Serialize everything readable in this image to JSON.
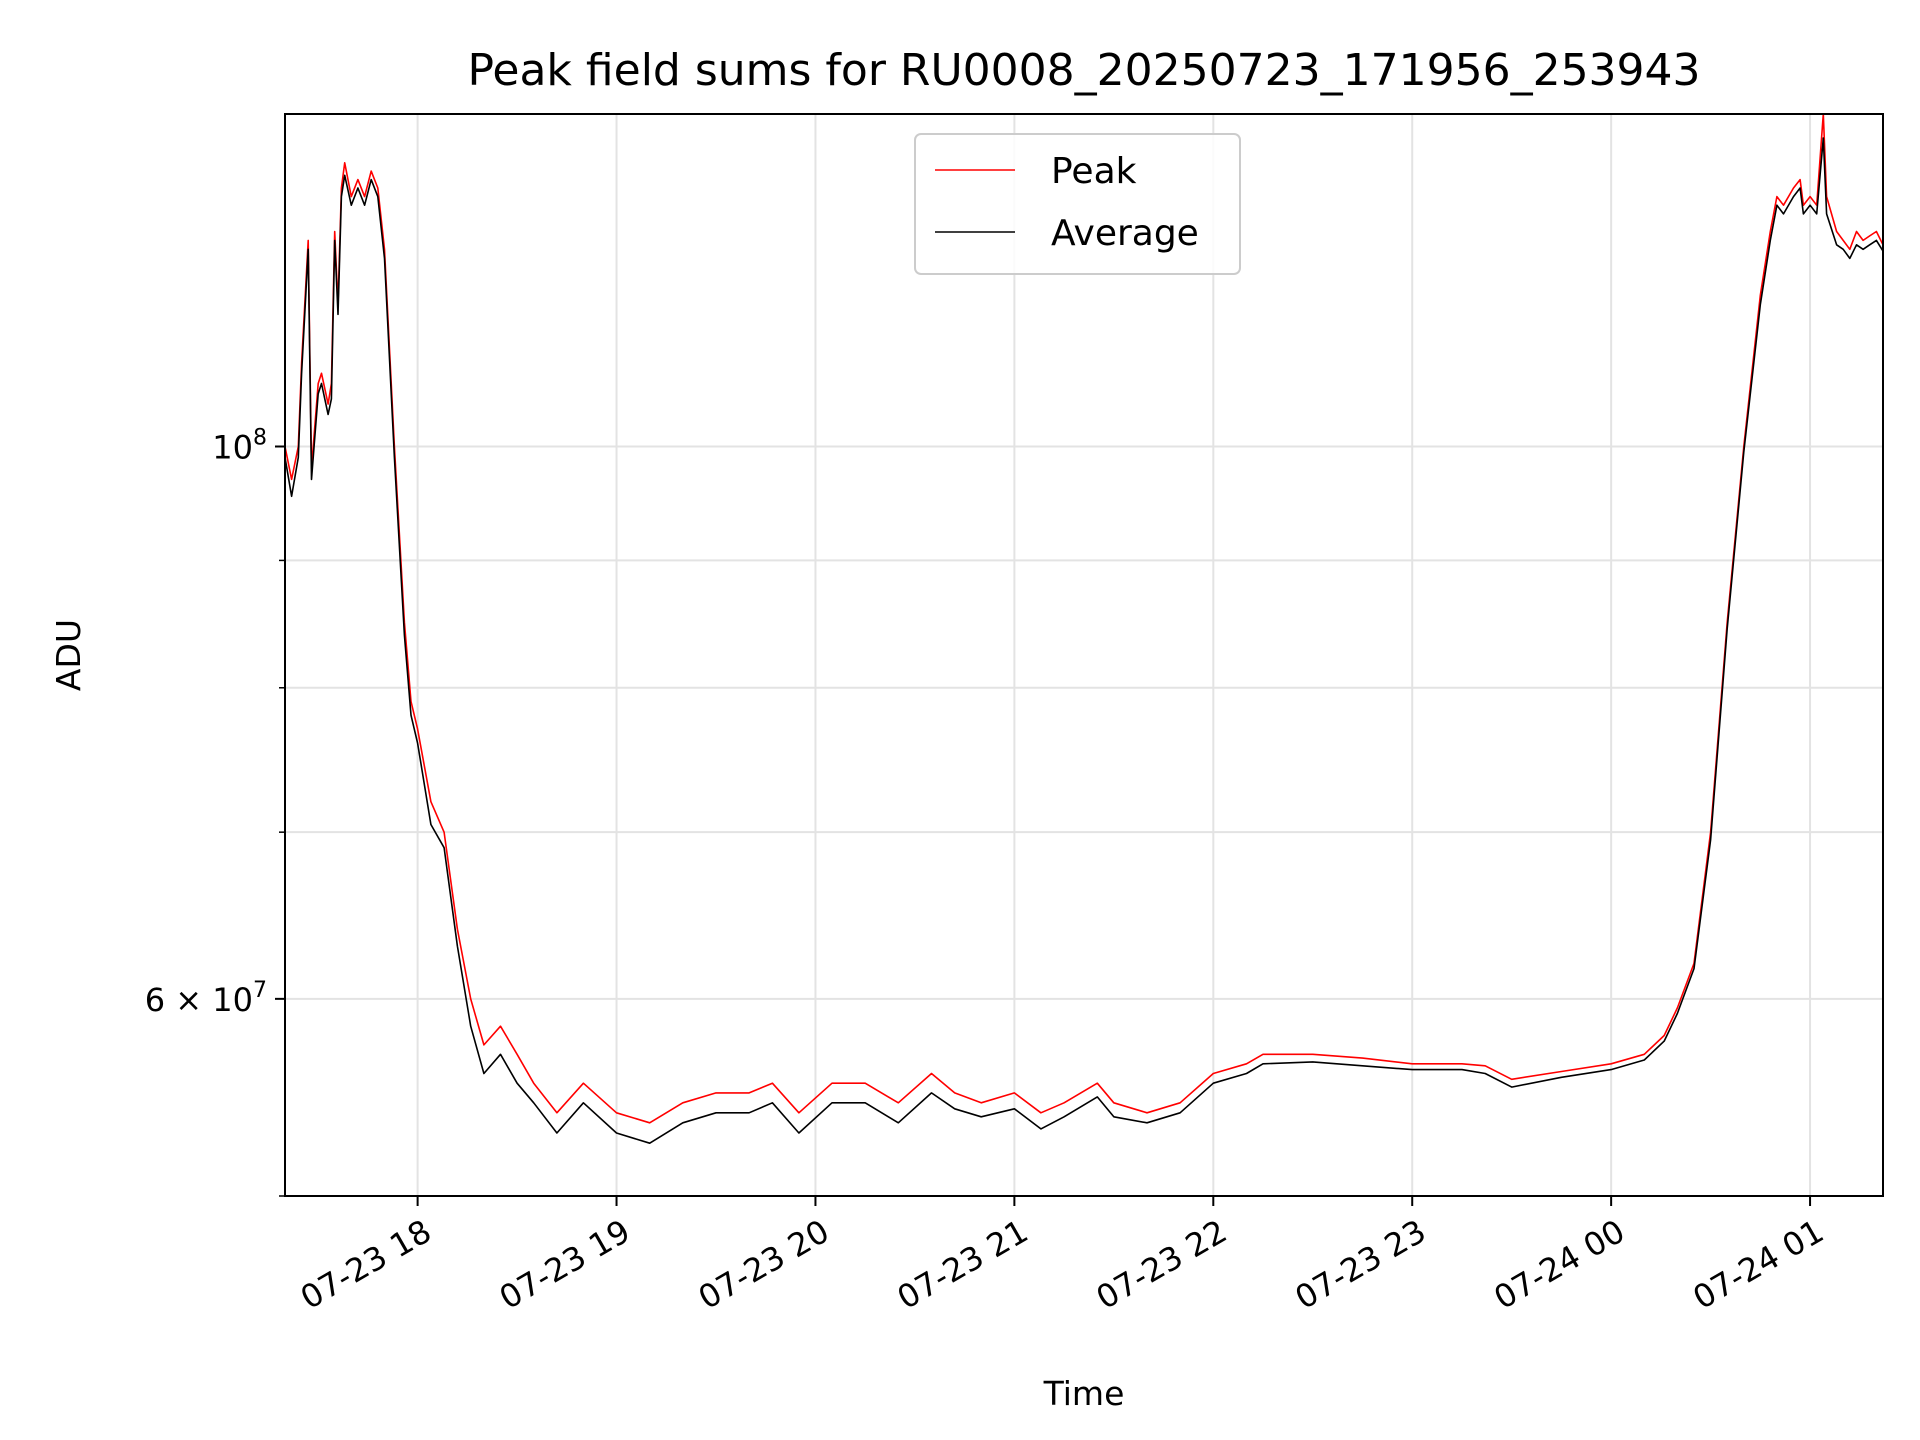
{
  "chart_data": {
    "type": "line",
    "title": "Peak field sums for RU0008_20250723_171956_253943",
    "xlabel": "Time",
    "ylabel": "ADU",
    "yscale": "log",
    "xlim": [
      "2025-07-23 17:20",
      "2025-07-24 01:22"
    ],
    "ylim": [
      50000000,
      136000000
    ],
    "x_ticks": [
      {
        "t": "2025-07-23 18:00",
        "label": "07-23 18"
      },
      {
        "t": "2025-07-23 19:00",
        "label": "07-23 19"
      },
      {
        "t": "2025-07-23 20:00",
        "label": "07-23 20"
      },
      {
        "t": "2025-07-23 21:00",
        "label": "07-23 21"
      },
      {
        "t": "2025-07-23 22:00",
        "label": "07-23 22"
      },
      {
        "t": "2025-07-23 23:00",
        "label": "07-23 23"
      },
      {
        "t": "2025-07-24 00:00",
        "label": "07-24 00"
      },
      {
        "t": "2025-07-24 01:00",
        "label": "07-24 01"
      }
    ],
    "y_major_ticks": [
      {
        "value": 60000000,
        "label_base": "6 × 10",
        "label_exp": "7"
      },
      {
        "value": 100000000,
        "label_base": "10",
        "label_exp": "8"
      }
    ],
    "y_minor_ticks": [
      50000000,
      70000000,
      80000000,
      90000000
    ],
    "grid": true,
    "legend_position": "top-center",
    "series": [
      {
        "name": "Peak",
        "color": "#ff0000",
        "x": [
          "2025-07-23 17:20",
          "2025-07-23 17:22",
          "2025-07-23 17:24",
          "2025-07-23 17:25",
          "2025-07-23 17:27",
          "2025-07-23 17:28",
          "2025-07-23 17:30",
          "2025-07-23 17:31",
          "2025-07-23 17:33",
          "2025-07-23 17:34",
          "2025-07-23 17:35",
          "2025-07-23 17:36",
          "2025-07-23 17:37",
          "2025-07-23 17:38",
          "2025-07-23 17:40",
          "2025-07-23 17:42",
          "2025-07-23 17:44",
          "2025-07-23 17:46",
          "2025-07-23 17:48",
          "2025-07-23 17:50",
          "2025-07-23 17:53",
          "2025-07-23 17:56",
          "2025-07-23 17:58",
          "2025-07-23 18:00",
          "2025-07-23 18:04",
          "2025-07-23 18:08",
          "2025-07-23 18:12",
          "2025-07-23 18:16",
          "2025-07-23 18:20",
          "2025-07-23 18:25",
          "2025-07-23 18:30",
          "2025-07-23 18:35",
          "2025-07-23 18:42",
          "2025-07-23 18:50",
          "2025-07-23 19:00",
          "2025-07-23 19:10",
          "2025-07-23 19:20",
          "2025-07-23 19:30",
          "2025-07-23 19:40",
          "2025-07-23 19:47",
          "2025-07-23 19:55",
          "2025-07-23 20:05",
          "2025-07-23 20:15",
          "2025-07-23 20:25",
          "2025-07-23 20:35",
          "2025-07-23 20:42",
          "2025-07-23 20:50",
          "2025-07-23 21:00",
          "2025-07-23 21:08",
          "2025-07-23 21:15",
          "2025-07-23 21:25",
          "2025-07-23 21:30",
          "2025-07-23 21:40",
          "2025-07-23 21:50",
          "2025-07-23 22:00",
          "2025-07-23 22:10",
          "2025-07-23 22:15",
          "2025-07-23 22:30",
          "2025-07-23 22:45",
          "2025-07-23 23:00",
          "2025-07-23 23:15",
          "2025-07-23 23:22",
          "2025-07-23 23:30",
          "2025-07-23 23:45",
          "2025-07-24 00:00",
          "2025-07-24 00:10",
          "2025-07-24 00:16",
          "2025-07-24 00:20",
          "2025-07-24 00:25",
          "2025-07-24 00:30",
          "2025-07-24 00:35",
          "2025-07-24 00:40",
          "2025-07-24 00:45",
          "2025-07-24 00:48",
          "2025-07-24 00:50",
          "2025-07-24 00:52",
          "2025-07-24 00:55",
          "2025-07-24 00:57",
          "2025-07-24 00:58",
          "2025-07-24 01:00",
          "2025-07-24 01:02",
          "2025-07-24 01:04",
          "2025-07-24 01:05",
          "2025-07-24 01:08",
          "2025-07-24 01:10",
          "2025-07-24 01:12",
          "2025-07-24 01:14",
          "2025-07-24 01:16",
          "2025-07-24 01:18",
          "2025-07-24 01:20",
          "2025-07-24 01:22"
        ],
        "y": [
          100000000,
          97000000,
          100000000,
          108000000,
          121000000,
          98000000,
          106000000,
          107000000,
          104000000,
          106000000,
          122000000,
          114000000,
          127000000,
          130000000,
          126000000,
          128000000,
          126000000,
          129000000,
          127000000,
          120000000,
          100000000,
          85000000,
          79000000,
          77000000,
          72000000,
          70000000,
          64000000,
          60000000,
          57500000,
          58500000,
          57000000,
          55500000,
          54000000,
          55500000,
          54000000,
          53500000,
          54500000,
          55000000,
          55000000,
          55500000,
          54000000,
          55500000,
          55500000,
          54500000,
          56000000,
          55000000,
          54500000,
          55000000,
          54000000,
          54500000,
          55500000,
          54500000,
          54000000,
          54500000,
          56000000,
          56500000,
          57000000,
          57000000,
          56800000,
          56500000,
          56500000,
          56400000,
          55700000,
          56100000,
          56500000,
          57000000,
          58000000,
          59500000,
          62000000,
          70000000,
          85000000,
          100000000,
          115000000,
          122000000,
          126000000,
          125000000,
          127000000,
          128000000,
          125000000,
          126000000,
          125000000,
          136000000,
          126000000,
          122000000,
          121000000,
          120000000,
          122000000,
          121000000,
          121500000,
          122000000,
          120500000
        ]
      },
      {
        "name": "Average",
        "color": "#000000",
        "x": [
          "2025-07-23 17:20",
          "2025-07-23 17:22",
          "2025-07-23 17:24",
          "2025-07-23 17:25",
          "2025-07-23 17:27",
          "2025-07-23 17:28",
          "2025-07-23 17:30",
          "2025-07-23 17:31",
          "2025-07-23 17:33",
          "2025-07-23 17:34",
          "2025-07-23 17:35",
          "2025-07-23 17:36",
          "2025-07-23 17:37",
          "2025-07-23 17:38",
          "2025-07-23 17:40",
          "2025-07-23 17:42",
          "2025-07-23 17:44",
          "2025-07-23 17:46",
          "2025-07-23 17:48",
          "2025-07-23 17:50",
          "2025-07-23 17:53",
          "2025-07-23 17:56",
          "2025-07-23 17:58",
          "2025-07-23 18:00",
          "2025-07-23 18:04",
          "2025-07-23 18:08",
          "2025-07-23 18:12",
          "2025-07-23 18:16",
          "2025-07-23 18:20",
          "2025-07-23 18:25",
          "2025-07-23 18:30",
          "2025-07-23 18:35",
          "2025-07-23 18:42",
          "2025-07-23 18:50",
          "2025-07-23 19:00",
          "2025-07-23 19:10",
          "2025-07-23 19:20",
          "2025-07-23 19:30",
          "2025-07-23 19:40",
          "2025-07-23 19:47",
          "2025-07-23 19:55",
          "2025-07-23 20:05",
          "2025-07-23 20:15",
          "2025-07-23 20:25",
          "2025-07-23 20:35",
          "2025-07-23 20:42",
          "2025-07-23 20:50",
          "2025-07-23 21:00",
          "2025-07-23 21:08",
          "2025-07-23 21:15",
          "2025-07-23 21:25",
          "2025-07-23 21:30",
          "2025-07-23 21:40",
          "2025-07-23 21:50",
          "2025-07-23 22:00",
          "2025-07-23 22:10",
          "2025-07-23 22:15",
          "2025-07-23 22:30",
          "2025-07-23 22:45",
          "2025-07-23 23:00",
          "2025-07-23 23:15",
          "2025-07-23 23:22",
          "2025-07-23 23:30",
          "2025-07-23 23:45",
          "2025-07-24 00:00",
          "2025-07-24 00:10",
          "2025-07-24 00:16",
          "2025-07-24 00:20",
          "2025-07-24 00:25",
          "2025-07-24 00:30",
          "2025-07-24 00:35",
          "2025-07-24 00:40",
          "2025-07-24 00:45",
          "2025-07-24 00:48",
          "2025-07-24 00:50",
          "2025-07-24 00:52",
          "2025-07-24 00:55",
          "2025-07-24 00:57",
          "2025-07-24 00:58",
          "2025-07-24 01:00",
          "2025-07-24 01:02",
          "2025-07-24 01:04",
          "2025-07-24 01:05",
          "2025-07-24 01:08",
          "2025-07-24 01:10",
          "2025-07-24 01:12",
          "2025-07-24 01:14",
          "2025-07-24 01:16",
          "2025-07-24 01:18",
          "2025-07-24 01:20",
          "2025-07-24 01:22"
        ],
        "y": [
          99000000,
          95500000,
          99000000,
          107000000,
          120000000,
          97000000,
          105000000,
          106000000,
          103000000,
          104500000,
          121000000,
          113000000,
          126000000,
          128500000,
          125000000,
          127000000,
          125000000,
          128000000,
          126000000,
          119000000,
          99000000,
          84000000,
          78000000,
          76000000,
          70500000,
          69000000,
          63000000,
          58500000,
          56000000,
          57000000,
          55500000,
          54500000,
          53000000,
          54500000,
          53000000,
          52500000,
          53500000,
          54000000,
          54000000,
          54500000,
          53000000,
          54500000,
          54500000,
          53500000,
          55000000,
          54200000,
          53800000,
          54200000,
          53200000,
          53800000,
          54800000,
          53800000,
          53500000,
          54000000,
          55500000,
          56000000,
          56500000,
          56600000,
          56400000,
          56200000,
          56200000,
          56000000,
          55300000,
          55800000,
          56200000,
          56700000,
          57700000,
          59200000,
          61700000,
          69500000,
          84500000,
          99500000,
          114000000,
          121000000,
          125000000,
          124000000,
          126000000,
          127000000,
          124000000,
          125000000,
          124000000,
          133000000,
          124000000,
          120500000,
          120000000,
          119000000,
          120500000,
          120000000,
          120500000,
          121000000,
          119800000
        ]
      }
    ]
  }
}
